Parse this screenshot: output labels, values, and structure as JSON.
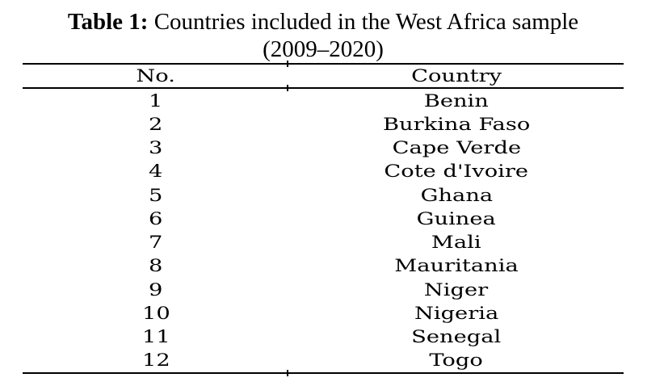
{
  "caption": {
    "label": "Table 1:",
    "title": "Countries included in the West Africa sample",
    "subtitle": "(2009–2020)"
  },
  "table": {
    "headers": {
      "no": "No.",
      "country": "Country"
    },
    "rows": [
      {
        "no": "1",
        "country": "Benin"
      },
      {
        "no": "2",
        "country": "Burkina Faso"
      },
      {
        "no": "3",
        "country": "Cape Verde"
      },
      {
        "no": "4",
        "country": "Cote d'Ivoire"
      },
      {
        "no": "5",
        "country": "Ghana"
      },
      {
        "no": "6",
        "country": "Guinea"
      },
      {
        "no": "7",
        "country": "Mali"
      },
      {
        "no": "8",
        "country": "Mauritania"
      },
      {
        "no": "9",
        "country": "Niger"
      },
      {
        "no": "10",
        "country": "Nigeria"
      },
      {
        "no": "11",
        "country": "Senegal"
      },
      {
        "no": "12",
        "country": "Togo"
      }
    ]
  },
  "colors": {
    "text": "#000000",
    "background": "#ffffff",
    "rule": "#000000"
  }
}
